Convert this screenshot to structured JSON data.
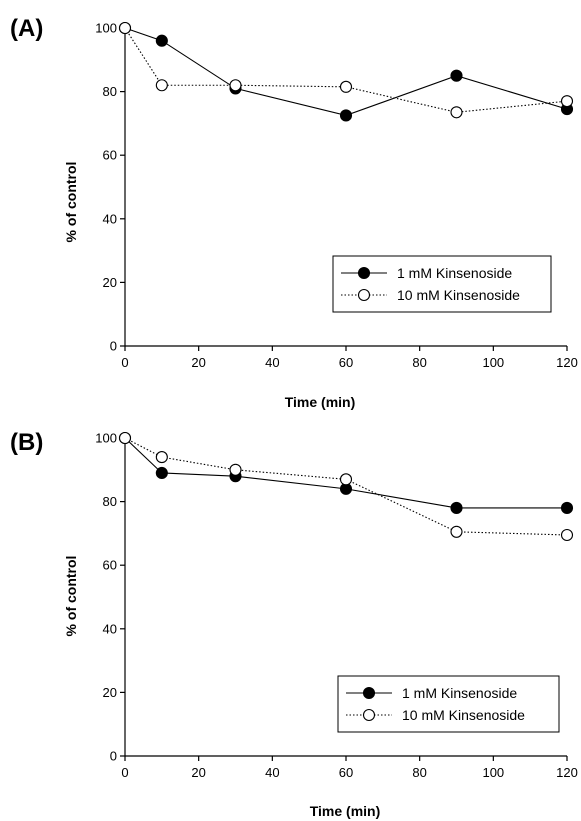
{
  "chart_data": [
    {
      "panel": "(A)",
      "type": "line",
      "xlabel": "Time (min)",
      "ylabel": "% of control",
      "xlim": [
        0,
        120
      ],
      "ylim": [
        0,
        100
      ],
      "xticks": [
        0,
        20,
        40,
        60,
        80,
        100,
        120
      ],
      "yticks": [
        0,
        20,
        40,
        60,
        80,
        100
      ],
      "grid": false,
      "legend_position": "bottom-right",
      "series": [
        {
          "name": "1 mM Kinsenoside",
          "marker": "filled-circle",
          "line": "solid",
          "x": [
            0,
            10,
            30,
            60,
            90,
            120
          ],
          "y": [
            100,
            96,
            81,
            72.5,
            85,
            74.5
          ]
        },
        {
          "name": "10 mM Kinsenoside",
          "marker": "open-circle",
          "line": "dotted",
          "x": [
            0,
            10,
            30,
            60,
            90,
            120
          ],
          "y": [
            100,
            82,
            82,
            81.5,
            73.5,
            77
          ]
        }
      ]
    },
    {
      "panel": "(B)",
      "type": "line",
      "xlabel": "Time (min)",
      "ylabel": "% of control",
      "xlim": [
        0,
        120
      ],
      "ylim": [
        0,
        100
      ],
      "xticks": [
        0,
        20,
        40,
        60,
        80,
        100,
        120
      ],
      "yticks": [
        0,
        20,
        40,
        60,
        80,
        100
      ],
      "grid": false,
      "legend_position": "bottom-right",
      "series": [
        {
          "name": "1 mM Kinsenoside",
          "marker": "filled-circle",
          "line": "solid",
          "x": [
            0,
            10,
            30,
            60,
            90,
            120
          ],
          "y": [
            100,
            89,
            88,
            84,
            78,
            78
          ]
        },
        {
          "name": "10 mM Kinsenoside",
          "marker": "open-circle",
          "line": "dotted",
          "x": [
            0,
            10,
            30,
            60,
            90,
            120
          ],
          "y": [
            100,
            94,
            90,
            87,
            70.5,
            69.5
          ]
        }
      ]
    }
  ]
}
